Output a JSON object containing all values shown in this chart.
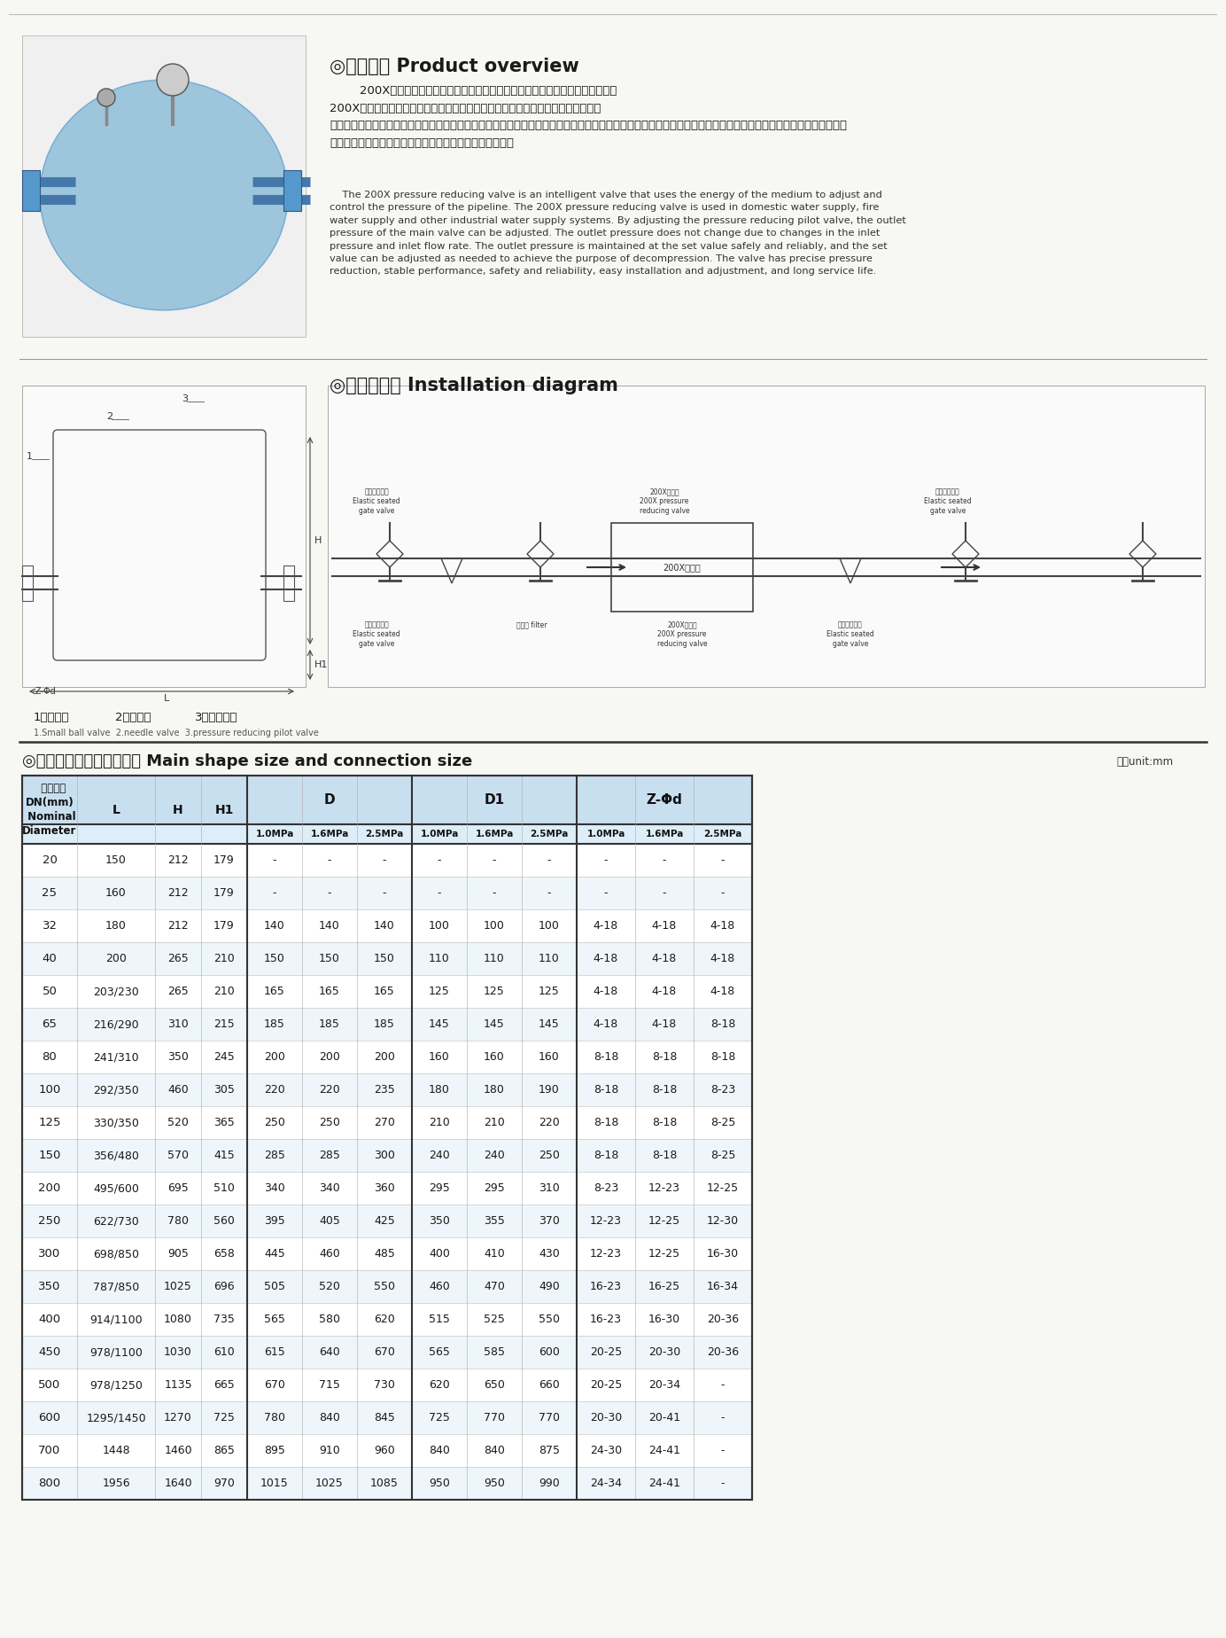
{
  "title_section": "◎产品概述 Product overview",
  "product_desc_cn_lines": [
    "        200X减压阀，是一种利用介质自身能量来调节与控制管路压力的智能型阀门。",
    "200X减压阀用于生活给水、消防给水及其他工业给水系统，通过调节减压导阀，即",
    "可调节主阀的出口压力。出口压力不因进口压力、进流量的变化而变化，安全可靠地将出口压力维持在设定値上，并可根据需要调节设定値以达到减压目的。该阀减压",
    "精确、性能稳定、安全可靠、安装调节方便、使用寿命长。"
  ],
  "product_desc_en": "    The 200X pressure reducing valve is an intelligent valve that uses the energy of the medium to adjust and\ncontrol the pressure of the pipeline. The 200X pressure reducing valve is used in domestic water supply, fire\nwater supply and other industrial water supply systems. By adjusting the pressure reducing pilot valve, the outlet\npressure of the main valve can be adjusted. The outlet pressure does not change due to changes in the inlet\npressure and inlet flow rate. The outlet pressure is maintained at the set value safely and reliably, and the set\nvalue can be adjusted as needed to achieve the purpose of decompression. The valve has precise pressure\nreduction, stable performance, safety and reliability, easy installation and adjustment, and long service life.",
  "install_title": "◎安装示意图 Installation diagram",
  "table_title": "◎主要外形尺寸和连接尺寸 Main shape size and connection size",
  "unit_label": "单位unit:mm",
  "footer_cn": [
    "1、小球阀",
    "2、针型阀",
    "3、减压导阀"
  ],
  "footer_en": "1.Small ball valve  2.needle valve  3.pressure reducing pilot valve",
  "table_data": [
    [
      "20",
      "150",
      "212",
      "179",
      "-",
      "-",
      "-",
      "-",
      "-",
      "-",
      "-",
      "-",
      "-"
    ],
    [
      "25",
      "160",
      "212",
      "179",
      "-",
      "-",
      "-",
      "-",
      "-",
      "-",
      "-",
      "-",
      "-"
    ],
    [
      "32",
      "180",
      "212",
      "179",
      "140",
      "140",
      "140",
      "100",
      "100",
      "100",
      "4-18",
      "4-18",
      "4-18"
    ],
    [
      "40",
      "200",
      "265",
      "210",
      "150",
      "150",
      "150",
      "110",
      "110",
      "110",
      "4-18",
      "4-18",
      "4-18"
    ],
    [
      "50",
      "203/230",
      "265",
      "210",
      "165",
      "165",
      "165",
      "125",
      "125",
      "125",
      "4-18",
      "4-18",
      "4-18"
    ],
    [
      "65",
      "216/290",
      "310",
      "215",
      "185",
      "185",
      "185",
      "145",
      "145",
      "145",
      "4-18",
      "4-18",
      "8-18"
    ],
    [
      "80",
      "241/310",
      "350",
      "245",
      "200",
      "200",
      "200",
      "160",
      "160",
      "160",
      "8-18",
      "8-18",
      "8-18"
    ],
    [
      "100",
      "292/350",
      "460",
      "305",
      "220",
      "220",
      "235",
      "180",
      "180",
      "190",
      "8-18",
      "8-18",
      "8-23"
    ],
    [
      "125",
      "330/350",
      "520",
      "365",
      "250",
      "250",
      "270",
      "210",
      "210",
      "220",
      "8-18",
      "8-18",
      "8-25"
    ],
    [
      "150",
      "356/480",
      "570",
      "415",
      "285",
      "285",
      "300",
      "240",
      "240",
      "250",
      "8-18",
      "8-18",
      "8-25"
    ],
    [
      "200",
      "495/600",
      "695",
      "510",
      "340",
      "340",
      "360",
      "295",
      "295",
      "310",
      "8-23",
      "12-23",
      "12-25"
    ],
    [
      "250",
      "622/730",
      "780",
      "560",
      "395",
      "405",
      "425",
      "350",
      "355",
      "370",
      "12-23",
      "12-25",
      "12-30"
    ],
    [
      "300",
      "698/850",
      "905",
      "658",
      "445",
      "460",
      "485",
      "400",
      "410",
      "430",
      "12-23",
      "12-25",
      "16-30"
    ],
    [
      "350",
      "787/850",
      "1025",
      "696",
      "505",
      "520",
      "550",
      "460",
      "470",
      "490",
      "16-23",
      "16-25",
      "16-34"
    ],
    [
      "400",
      "914/1100",
      "1080",
      "735",
      "565",
      "580",
      "620",
      "515",
      "525",
      "550",
      "16-23",
      "16-30",
      "20-36"
    ],
    [
      "450",
      "978/1100",
      "1030",
      "610",
      "615",
      "640",
      "670",
      "565",
      "585",
      "600",
      "20-25",
      "20-30",
      "20-36"
    ],
    [
      "500",
      "978/1250",
      "1135",
      "665",
      "670",
      "715",
      "730",
      "620",
      "650",
      "660",
      "20-25",
      "20-34",
      "-"
    ],
    [
      "600",
      "1295/1450",
      "1270",
      "725",
      "780",
      "840",
      "845",
      "725",
      "770",
      "770",
      "20-30",
      "20-41",
      "-"
    ],
    [
      "700",
      "1448",
      "1460",
      "865",
      "895",
      "910",
      "960",
      "840",
      "840",
      "875",
      "24-30",
      "24-41",
      "-"
    ],
    [
      "800",
      "1956",
      "1640",
      "970",
      "1015",
      "1025",
      "1085",
      "950",
      "950",
      "990",
      "24-34",
      "24-41",
      "-"
    ]
  ]
}
